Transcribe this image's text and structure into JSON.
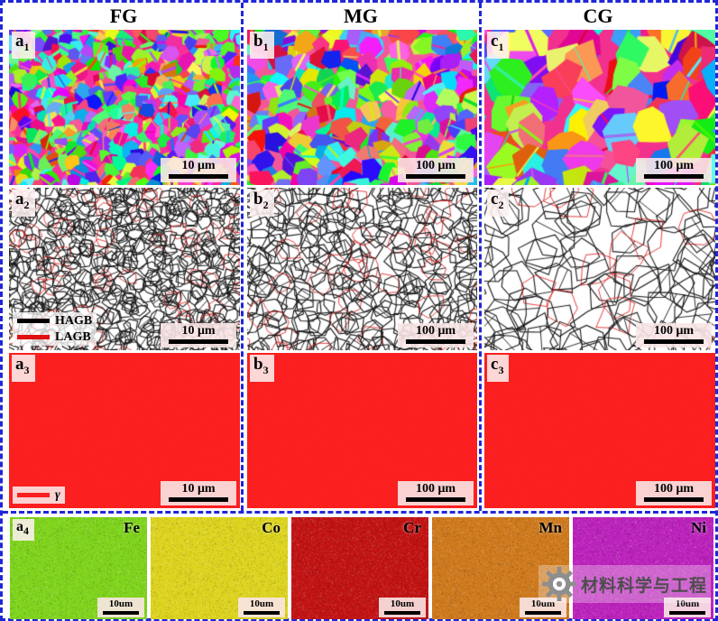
{
  "header": {
    "columns": [
      {
        "label": "FG"
      },
      {
        "label": "MG"
      },
      {
        "label": "CG"
      }
    ]
  },
  "rows": {
    "ipf": {
      "panels": [
        {
          "label": "a",
          "sub": "1",
          "scale": "10 μm"
        },
        {
          "label": "b",
          "sub": "1",
          "scale": "100 μm"
        },
        {
          "label": "c",
          "sub": "1",
          "scale": "100 μm"
        }
      ]
    },
    "gb": {
      "legend": {
        "hagb": "HAGB",
        "lagb": "LAGB"
      },
      "panels": [
        {
          "label": "a",
          "sub": "2",
          "scale": "10 μm"
        },
        {
          "label": "b",
          "sub": "2",
          "scale": "100 μm"
        },
        {
          "label": "c",
          "sub": "2",
          "scale": "100 μm"
        }
      ]
    },
    "phase": {
      "legend": {
        "gamma": "γ"
      },
      "panels": [
        {
          "label": "a",
          "sub": "3",
          "scale": "10 μm"
        },
        {
          "label": "b",
          "sub": "3",
          "scale": "100 μm"
        },
        {
          "label": "c",
          "sub": "3",
          "scale": "100 μm"
        }
      ]
    },
    "eds": {
      "label": "a",
      "sub": "4",
      "panels": [
        {
          "element": "Fe",
          "scale": "10um",
          "color": "#7fd41c"
        },
        {
          "element": "Co",
          "scale": "10um",
          "color": "#ddd41f"
        },
        {
          "element": "Cr",
          "scale": "10um",
          "color": "#c21313"
        },
        {
          "element": "Mn",
          "scale": "10um",
          "color": "#cf7a1d"
        },
        {
          "element": "Ni",
          "scale": "10um",
          "color": "#bc22bc"
        }
      ]
    }
  },
  "legend_colors": {
    "hagb": "#000000",
    "lagb": "#e01010",
    "gamma": "#fb1f1f"
  },
  "style": {
    "border_blue": "#2026d8",
    "phase_red": "#fb1f1f"
  },
  "grain_cell": {
    "fg": 11,
    "mg": 15,
    "cg": 26
  },
  "watermark": {
    "text": "材料科学与工程",
    "icon": "gear"
  }
}
